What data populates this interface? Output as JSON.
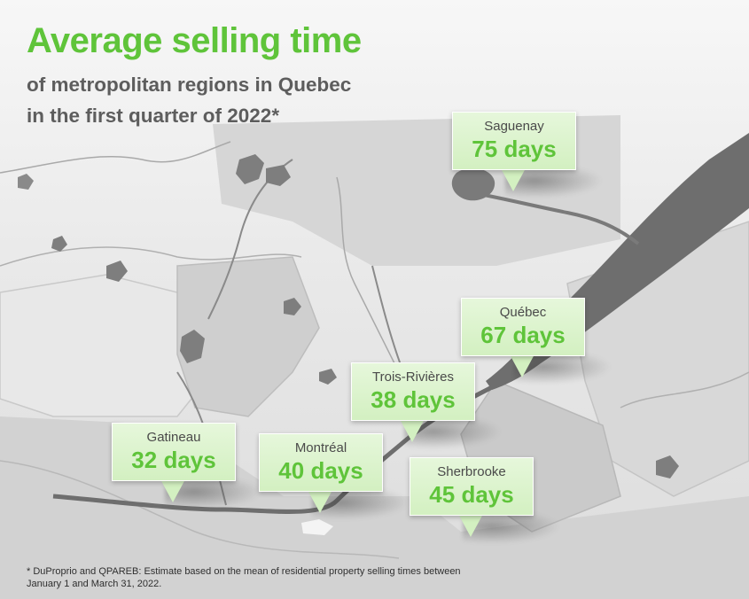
{
  "title": "Average selling time",
  "subtitle_lines": [
    "of metropolitan regions in Quebec",
    "in the first quarter of 2022*"
  ],
  "colors": {
    "accent": "#5fc43a",
    "label_bg": "#d3f0c1",
    "text_gray": "#5d5d5d",
    "river": "#6e6e6e"
  },
  "regions": [
    {
      "city": "Saguenay",
      "days": "75 days"
    },
    {
      "city": "Québec",
      "days": "67 days"
    },
    {
      "city": "Trois-Rivières",
      "days": "38 days"
    },
    {
      "city": "Gatineau",
      "days": "32 days"
    },
    {
      "city": "Montréal",
      "days": "40 days"
    },
    {
      "city": "Sherbrooke",
      "days": "45 days"
    }
  ],
  "footnote_lines": [
    "* DuProprio and QPAREB: Estimate based on the mean of residential property selling times between",
    "January 1 and March 31, 2022."
  ]
}
